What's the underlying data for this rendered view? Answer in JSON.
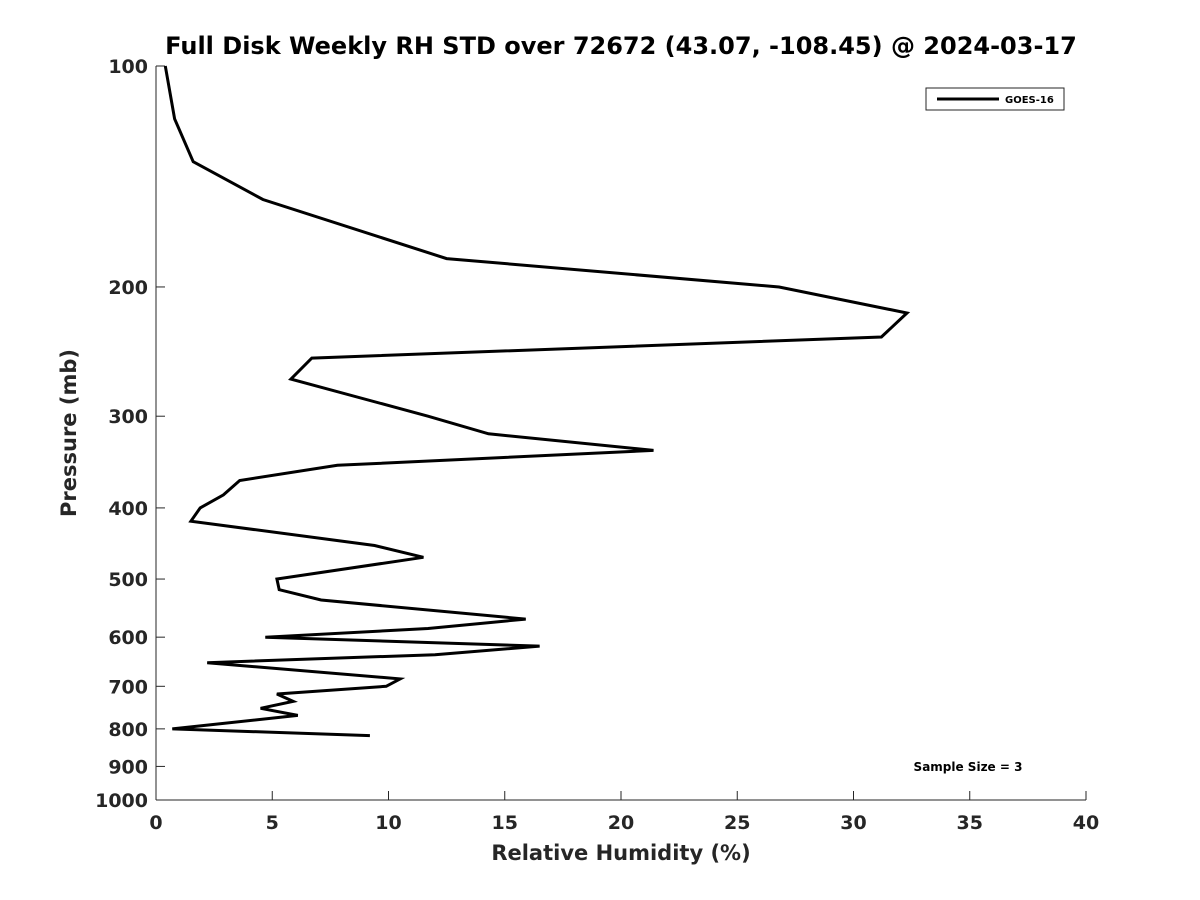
{
  "chart_data": {
    "type": "line",
    "title": "Full Disk Weekly RH STD over 72672 (43.07, -108.45) @ 2024-03-17",
    "xlabel": "Relative Humidity (%)",
    "ylabel": "Pressure (mb)",
    "xlim": [
      0,
      40
    ],
    "ylim": [
      100,
      1000
    ],
    "yscale": "log",
    "y_reversed": true,
    "grid": false,
    "x_ticks": [
      0,
      5,
      10,
      15,
      20,
      25,
      30,
      35,
      40
    ],
    "y_ticks": [
      100,
      200,
      300,
      400,
      500,
      600,
      700,
      800,
      900,
      1000
    ],
    "legend_position": "top-right",
    "annotation": "Sample Size = 3",
    "series": [
      {
        "name": "GOES-16",
        "color": "#000000",
        "points": [
          {
            "x": 0.4,
            "y": 100
          },
          {
            "x": 0.8,
            "y": 118
          },
          {
            "x": 1.6,
            "y": 135
          },
          {
            "x": 4.6,
            "y": 152
          },
          {
            "x": 12.5,
            "y": 183
          },
          {
            "x": 26.8,
            "y": 200
          },
          {
            "x": 32.3,
            "y": 217
          },
          {
            "x": 31.2,
            "y": 234
          },
          {
            "x": 6.7,
            "y": 250
          },
          {
            "x": 5.8,
            "y": 267
          },
          {
            "x": 11.7,
            "y": 300
          },
          {
            "x": 14.3,
            "y": 317
          },
          {
            "x": 21.4,
            "y": 334
          },
          {
            "x": 7.8,
            "y": 350
          },
          {
            "x": 3.6,
            "y": 367
          },
          {
            "x": 2.9,
            "y": 384
          },
          {
            "x": 1.9,
            "y": 400
          },
          {
            "x": 1.5,
            "y": 417
          },
          {
            "x": 9.4,
            "y": 450
          },
          {
            "x": 11.5,
            "y": 467
          },
          {
            "x": 5.2,
            "y": 500
          },
          {
            "x": 5.3,
            "y": 517
          },
          {
            "x": 7.1,
            "y": 534
          },
          {
            "x": 15.9,
            "y": 567
          },
          {
            "x": 11.7,
            "y": 584
          },
          {
            "x": 4.7,
            "y": 600
          },
          {
            "x": 16.5,
            "y": 617
          },
          {
            "x": 12.0,
            "y": 634
          },
          {
            "x": 2.2,
            "y": 650
          },
          {
            "x": 10.5,
            "y": 684
          },
          {
            "x": 9.9,
            "y": 700
          },
          {
            "x": 5.2,
            "y": 717
          },
          {
            "x": 5.9,
            "y": 734
          },
          {
            "x": 4.5,
            "y": 750
          },
          {
            "x": 6.1,
            "y": 767
          },
          {
            "x": 0.7,
            "y": 800
          },
          {
            "x": 9.2,
            "y": 817
          }
        ]
      }
    ]
  }
}
